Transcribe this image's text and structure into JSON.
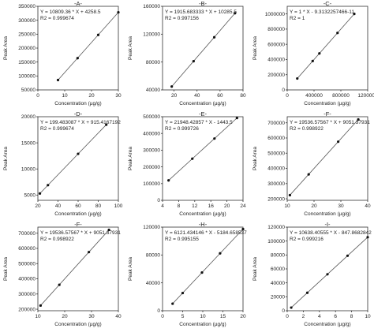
{
  "chart_data": [
    {
      "type": "scatter",
      "title": "-A-",
      "equation": "Y = 10809.36 * X + 4258.5",
      "r2": "R2 = 0.999674",
      "x_label": "Concentration (µg/g)",
      "y_label": "Peak Area",
      "color": "#111111",
      "x": [
        7.5,
        14.8,
        22.5,
        30
      ],
      "values": [
        85300,
        164000,
        247500,
        328500
      ],
      "fit": {
        "x": [
          7.5,
          30
        ],
        "y": [
          85300,
          328500
        ]
      },
      "xlim": [
        0,
        30
      ],
      "xticks": [
        0,
        10,
        20,
        30
      ],
      "ylim": [
        50000,
        350000
      ],
      "yticks": [
        50000,
        100000,
        150000,
        200000,
        250000,
        300000,
        350000
      ]
    },
    {
      "type": "scatter",
      "title": "-B-",
      "equation": "Y = 1915.683333 * X + 10285.5",
      "r2": "R2 = 0.997156",
      "x_label": "Concentration (µg/g)",
      "y_label": "Peak Area",
      "color": "#111111",
      "x": [
        18,
        37,
        55,
        73
      ],
      "values": [
        44800,
        81200,
        115600,
        150100
      ],
      "fit": {
        "x": [
          18,
          73
        ],
        "y": [
          44800,
          150100
        ]
      },
      "xlim": [
        10,
        80
      ],
      "xticks": [
        20,
        40,
        60,
        80
      ],
      "ylim": [
        40000,
        160000
      ],
      "yticks": [
        40000,
        80000,
        120000,
        160000
      ]
    },
    {
      "type": "scatter",
      "title": "-C-",
      "equation": "Y = 1 * X - 9.3132257466-11",
      "r2": "R2 = 1",
      "x_label": "Concentration (µg/g)",
      "y_label": "Peak Area",
      "color": "#111111",
      "x": [
        150000,
        380000,
        480000,
        750000,
        1000000
      ],
      "values": [
        150000,
        380000,
        480000,
        750000,
        1000000
      ],
      "fit": {
        "x": [
          150000,
          1000000
        ],
        "y": [
          150000,
          1000000
        ]
      },
      "xlim": [
        0,
        1200000
      ],
      "xticks": [
        0,
        400000,
        800000,
        1200000
      ],
      "ylim": [
        0,
        1100000
      ],
      "yticks": [
        0,
        200000,
        400000,
        600000,
        800000,
        1000000
      ]
    },
    {
      "type": "scatter",
      "title": "-D-",
      "equation": "Y = 199.483087 * X + 915.4167192",
      "r2": "R2 = 0.999674",
      "x_label": "Concentration (µg/g)",
      "y_label": "Peak Area",
      "color": "#111111",
      "x": [
        22,
        30,
        60,
        88
      ],
      "values": [
        5300,
        6900,
        12900,
        18470
      ],
      "fit": {
        "x": [
          22,
          88
        ],
        "y": [
          5300,
          18470
        ]
      },
      "xlim": [
        20,
        100
      ],
      "xticks": [
        20,
        40,
        60,
        80,
        100
      ],
      "ylim": [
        4000,
        20000
      ],
      "yticks": [
        5000,
        10000,
        15000,
        20000
      ]
    },
    {
      "type": "scatter",
      "title": "-E-",
      "equation": "Y = 21948.42857 * X - 1443.5",
      "r2": "R2 = 0.999726",
      "x_label": "Concentration (µg/g)",
      "y_label": "Peak Area",
      "color": "#111111",
      "x": [
        5.5,
        11.4,
        16.9,
        22.5
      ],
      "values": [
        119000,
        249000,
        369500,
        492400
      ],
      "fit": {
        "x": [
          5.5,
          22.5
        ],
        "y": [
          119000,
          492400
        ]
      },
      "xlim": [
        4,
        24
      ],
      "xticks": [
        4,
        8,
        12,
        16,
        20,
        24
      ],
      "ylim": [
        0,
        500000
      ],
      "yticks": [
        0,
        100000,
        200000,
        300000,
        400000,
        500000
      ]
    },
    {
      "type": "scatter",
      "title": "-F-",
      "equation": "Y = 19536.57567 * X + 9051.37931",
      "r2": "R2 = 0.998922",
      "x_label": "Concentration (µg/g)",
      "y_label": "Peak Area",
      "color": "#111111",
      "x": [
        11,
        18,
        29,
        36.5
      ],
      "values": [
        224000,
        360700,
        575600,
        722000
      ],
      "fit": {
        "x": [
          11,
          36.5
        ],
        "y": [
          224000,
          722000
        ]
      },
      "xlim": [
        10,
        40
      ],
      "xticks": [
        10,
        20,
        30,
        40
      ],
      "ylim": [
        190000,
        740000
      ],
      "yticks": [
        200000,
        300000,
        400000,
        500000,
        600000,
        700000
      ]
    },
    {
      "type": "scatter",
      "title": "-F-",
      "equation": "Y = 19536.57567 * X + 9051.37931",
      "r2": "R2 = 0.998922",
      "x_label": "Concentration (µg/g)",
      "y_label": "Peak Area",
      "color": "#111111",
      "x": [
        11,
        18,
        29,
        36.5
      ],
      "values": [
        224000,
        360700,
        575600,
        722000
      ],
      "fit": {
        "x": [
          11,
          36.5
        ],
        "y": [
          224000,
          722000
        ]
      },
      "xlim": [
        10,
        40
      ],
      "xticks": [
        10,
        20,
        30,
        40
      ],
      "ylim": [
        190000,
        740000
      ],
      "yticks": [
        200000,
        300000,
        400000,
        500000,
        600000,
        700000
      ]
    },
    {
      "type": "scatter",
      "title": "-H-",
      "equation": "Y = 6121.434146 * X - 5184.658537",
      "r2": "R2 = 0.995155",
      "x_label": "Concentration (µg/g)",
      "y_label": "Peak Area",
      "color": "#111111",
      "x": [
        2.5,
        5,
        9.8,
        14.3,
        20
      ],
      "values": [
        10100,
        25400,
        54800,
        82400,
        117200
      ],
      "fit": {
        "x": [
          2.5,
          20
        ],
        "y": [
          10100,
          117200
        ]
      },
      "xlim": [
        0,
        20
      ],
      "xticks": [
        0,
        5,
        10,
        15,
        20
      ],
      "ylim": [
        0,
        120000
      ],
      "yticks": [
        0,
        40000,
        80000,
        120000
      ]
    },
    {
      "type": "scatter",
      "title": "-I-",
      "equation": "Y = 10638.40555 * X - 847.8682842",
      "r2": "R2 = 0.999216",
      "x_label": "Concentration (µg/g)",
      "y_label": "Peak Area",
      "color": "#111111",
      "x": [
        0.5,
        2.5,
        5,
        7.5,
        10
      ],
      "values": [
        4470,
        25750,
        52300,
        78900,
        105500
      ],
      "fit": {
        "x": [
          0.5,
          10
        ],
        "y": [
          4470,
          105500
        ]
      },
      "xlim": [
        0,
        10
      ],
      "xticks": [
        0,
        2,
        4,
        6,
        8,
        10
      ],
      "ylim": [
        0,
        120000
      ],
      "yticks": [
        0,
        20000,
        40000,
        60000,
        80000,
        100000,
        120000
      ]
    }
  ]
}
